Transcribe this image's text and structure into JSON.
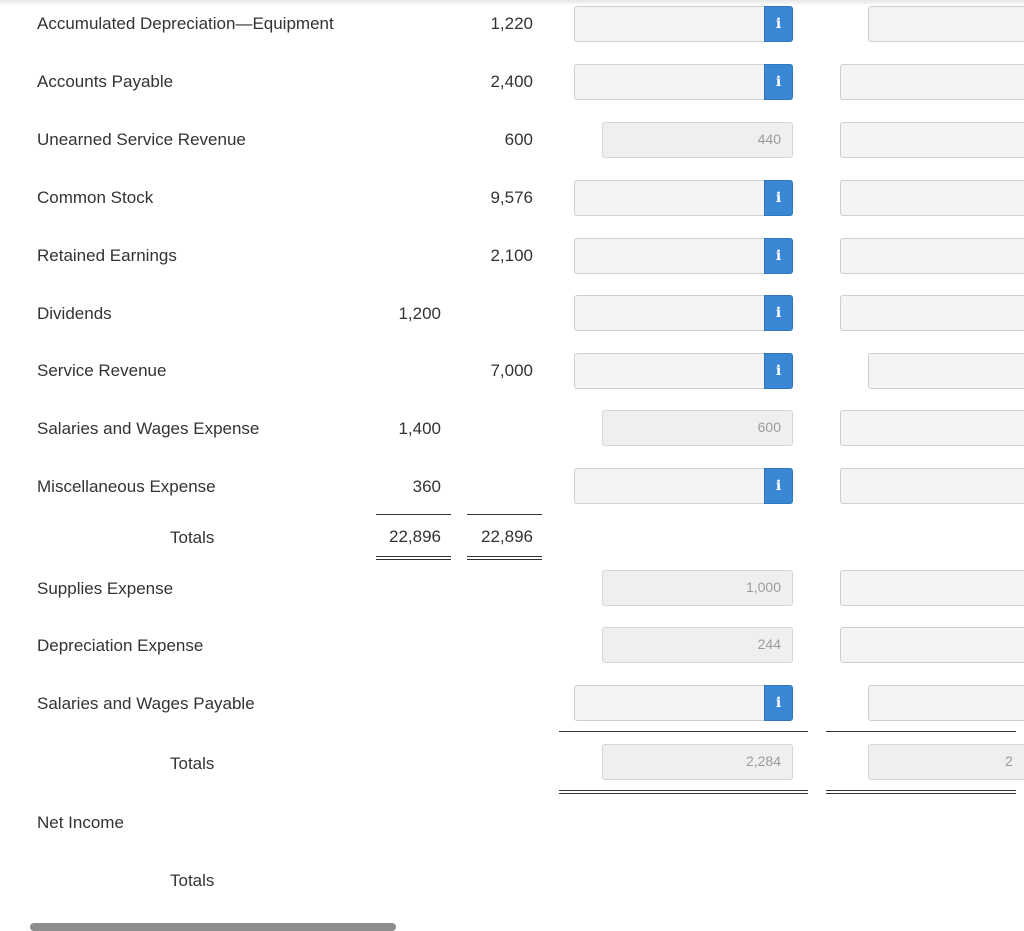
{
  "rows": [
    {
      "label": "Accumulated Depreciation—Equipment",
      "credit": "1,220"
    },
    {
      "label": "Accounts Payable",
      "credit": "2,400"
    },
    {
      "label": "Unearned Service Revenue",
      "credit": "600",
      "adjustment": "440"
    },
    {
      "label": "Common Stock",
      "credit": "9,576"
    },
    {
      "label": "Retained Earnings",
      "credit": "2,100"
    },
    {
      "label": "Dividends",
      "debit": "1,200"
    },
    {
      "label": "Service Revenue",
      "credit": "7,000"
    },
    {
      "label": "Salaries and Wages Expense",
      "debit": "1,400",
      "adjustment": "600"
    },
    {
      "label": "Miscellaneous Expense",
      "debit": "360"
    }
  ],
  "totals1": {
    "label": "Totals",
    "debit": "22,896",
    "credit": "22,896"
  },
  "adjusting_rows": [
    {
      "label": "Supplies Expense",
      "adjustment": "1,000"
    },
    {
      "label": "Depreciation Expense",
      "adjustment": "244"
    },
    {
      "label": "Salaries and Wages Payable"
    }
  ],
  "totals2": {
    "label": "Totals",
    "adjustment": "2,284",
    "right_partial": "2"
  },
  "net_income": {
    "label": "Net Income"
  },
  "totals3": {
    "label": "Totals"
  },
  "info_glyph": "i",
  "colors": {
    "info_button": "#3a87d6",
    "field_bg": "#f4f4f4",
    "text": "#333333"
  }
}
